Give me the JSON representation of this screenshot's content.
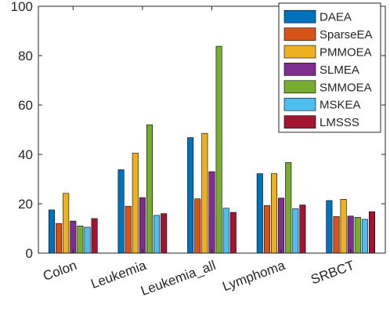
{
  "chart_data": {
    "type": "bar",
    "title": "",
    "xlabel": "",
    "ylabel": "",
    "ylim": [
      0,
      100
    ],
    "yticks": [
      0,
      20,
      40,
      60,
      80,
      100
    ],
    "grid": false,
    "legend_placement": "top-right",
    "categories": [
      "Colon",
      "Leukemia",
      "Leukemia_all",
      "Lymphoma",
      "SRBCT"
    ],
    "series": [
      {
        "name": "DAEA",
        "color": "#0072BD",
        "values": [
          17.5,
          33.8,
          46.8,
          32.2,
          21.3
        ]
      },
      {
        "name": "SparseEA",
        "color": "#D95319",
        "values": [
          12.0,
          19.0,
          22.0,
          19.3,
          14.8
        ]
      },
      {
        "name": "PMMOEA",
        "color": "#EDB120",
        "values": [
          24.2,
          40.5,
          48.5,
          32.2,
          21.8
        ]
      },
      {
        "name": "SLMEA",
        "color": "#7E2F8E",
        "values": [
          13.0,
          22.5,
          33.0,
          22.3,
          15.0
        ]
      },
      {
        "name": "SMMOEA",
        "color": "#77AC30",
        "values": [
          11.0,
          52.0,
          83.8,
          36.7,
          14.5
        ]
      },
      {
        "name": "MSKEA",
        "color": "#4DBEEE",
        "values": [
          10.5,
          15.3,
          18.2,
          18.0,
          13.7
        ]
      },
      {
        "name": "LMSSS",
        "color": "#A2142F",
        "values": [
          14.0,
          16.0,
          16.5,
          19.5,
          16.8
        ]
      }
    ]
  }
}
